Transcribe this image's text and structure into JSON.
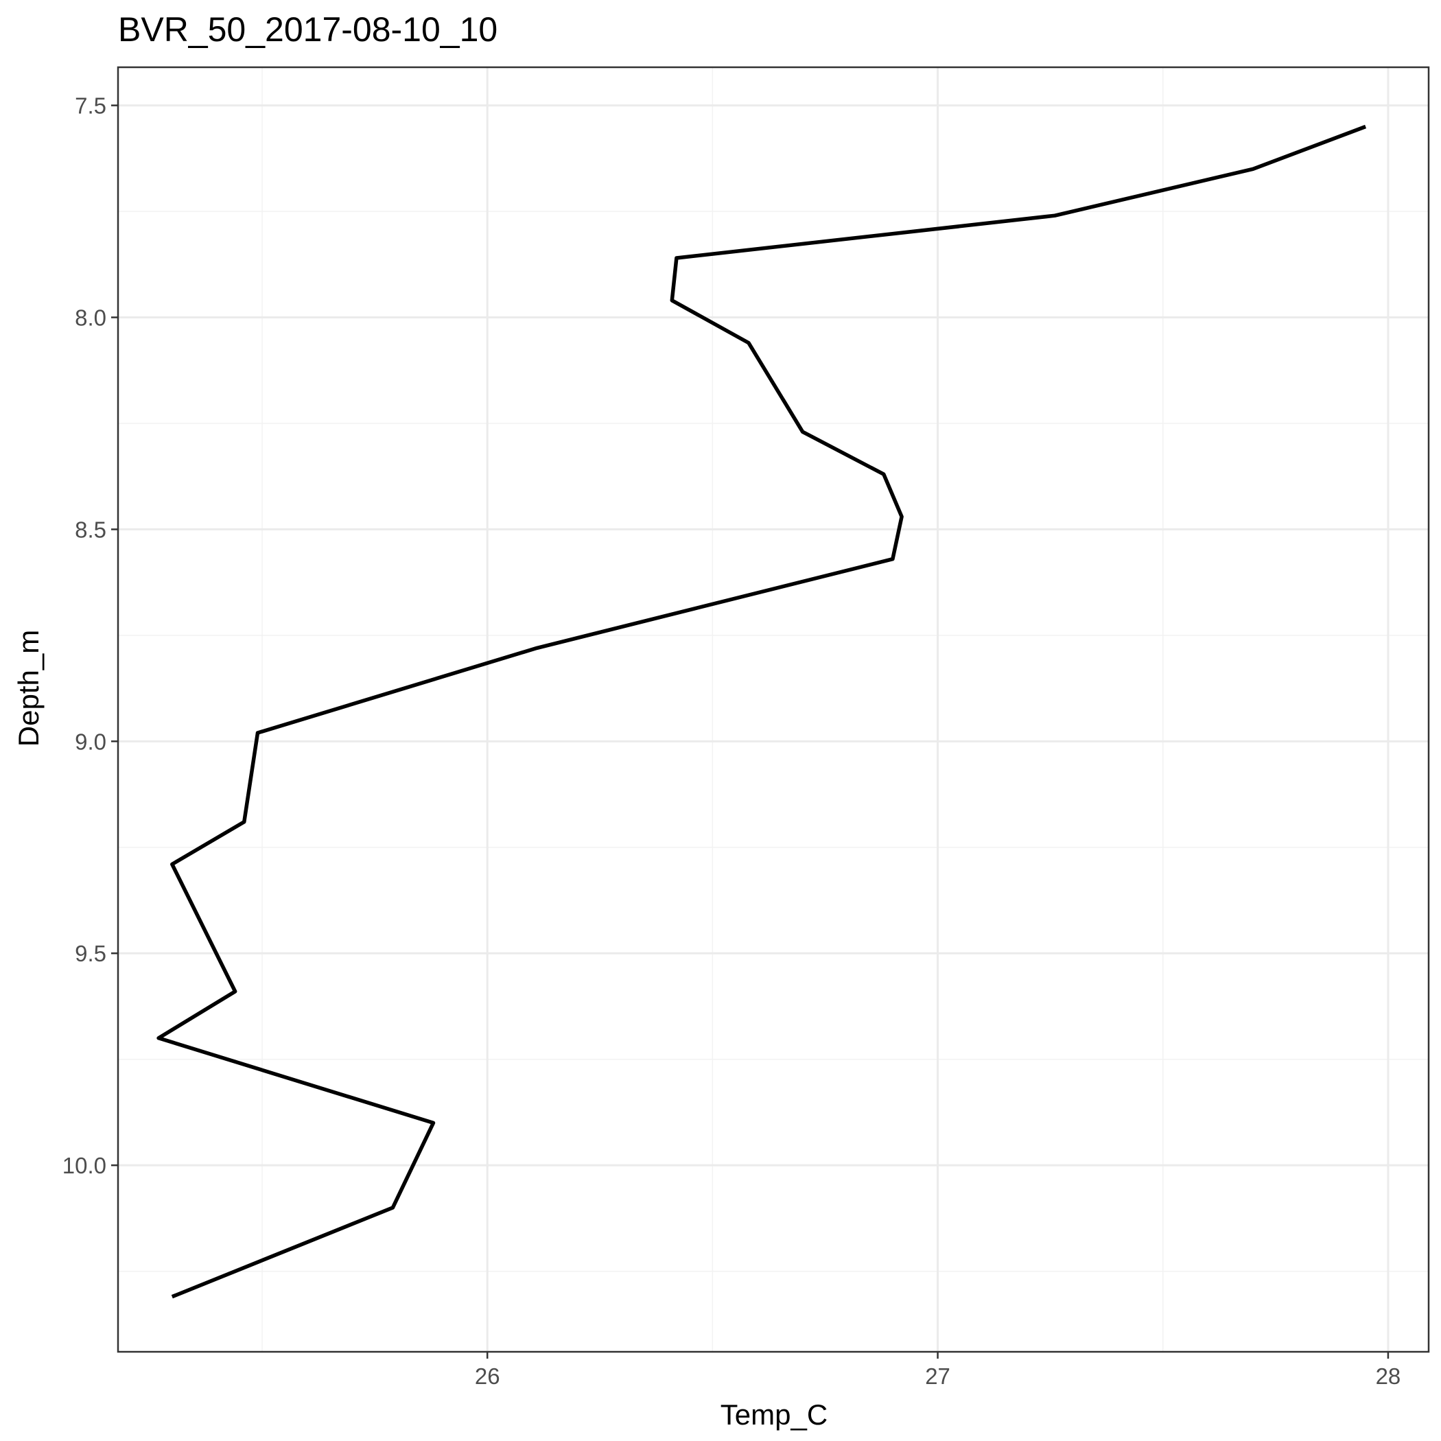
{
  "chart_data": {
    "type": "line",
    "title": "BVR_50_2017-08-10_10",
    "xlabel": "Temp_C",
    "ylabel": "Depth_m",
    "xlim": [
      25.18,
      28.09
    ],
    "ylim": [
      7.41,
      10.44
    ],
    "y_reversed": true,
    "grid": true,
    "x_major_ticks": [
      26,
      27,
      28
    ],
    "x_minor_ticks": [
      25.5,
      26.5,
      27.5
    ],
    "x_tick_labels": [
      "26",
      "27",
      "28"
    ],
    "y_major_ticks": [
      7.5,
      8.0,
      8.5,
      9.0,
      9.5,
      10.0
    ],
    "y_minor_ticks": [
      7.75,
      8.25,
      8.75,
      9.25,
      9.75,
      10.25
    ],
    "y_tick_labels": [
      "7.5",
      "8.0",
      "8.5",
      "9.0",
      "9.5",
      "10.0"
    ],
    "series": [
      {
        "color": "#000000",
        "x": [
          27.95,
          27.7,
          27.26,
          26.42,
          26.41,
          26.58,
          26.7,
          26.88,
          26.92,
          26.9,
          26.11,
          25.49,
          25.46,
          25.3,
          25.44,
          25.27,
          25.88,
          25.79,
          25.3
        ],
        "y": [
          7.55,
          7.65,
          7.76,
          7.86,
          7.96,
          8.06,
          8.27,
          8.37,
          8.47,
          8.57,
          8.78,
          8.98,
          9.19,
          9.29,
          9.59,
          9.7,
          9.9,
          10.1,
          10.31
        ]
      }
    ]
  }
}
